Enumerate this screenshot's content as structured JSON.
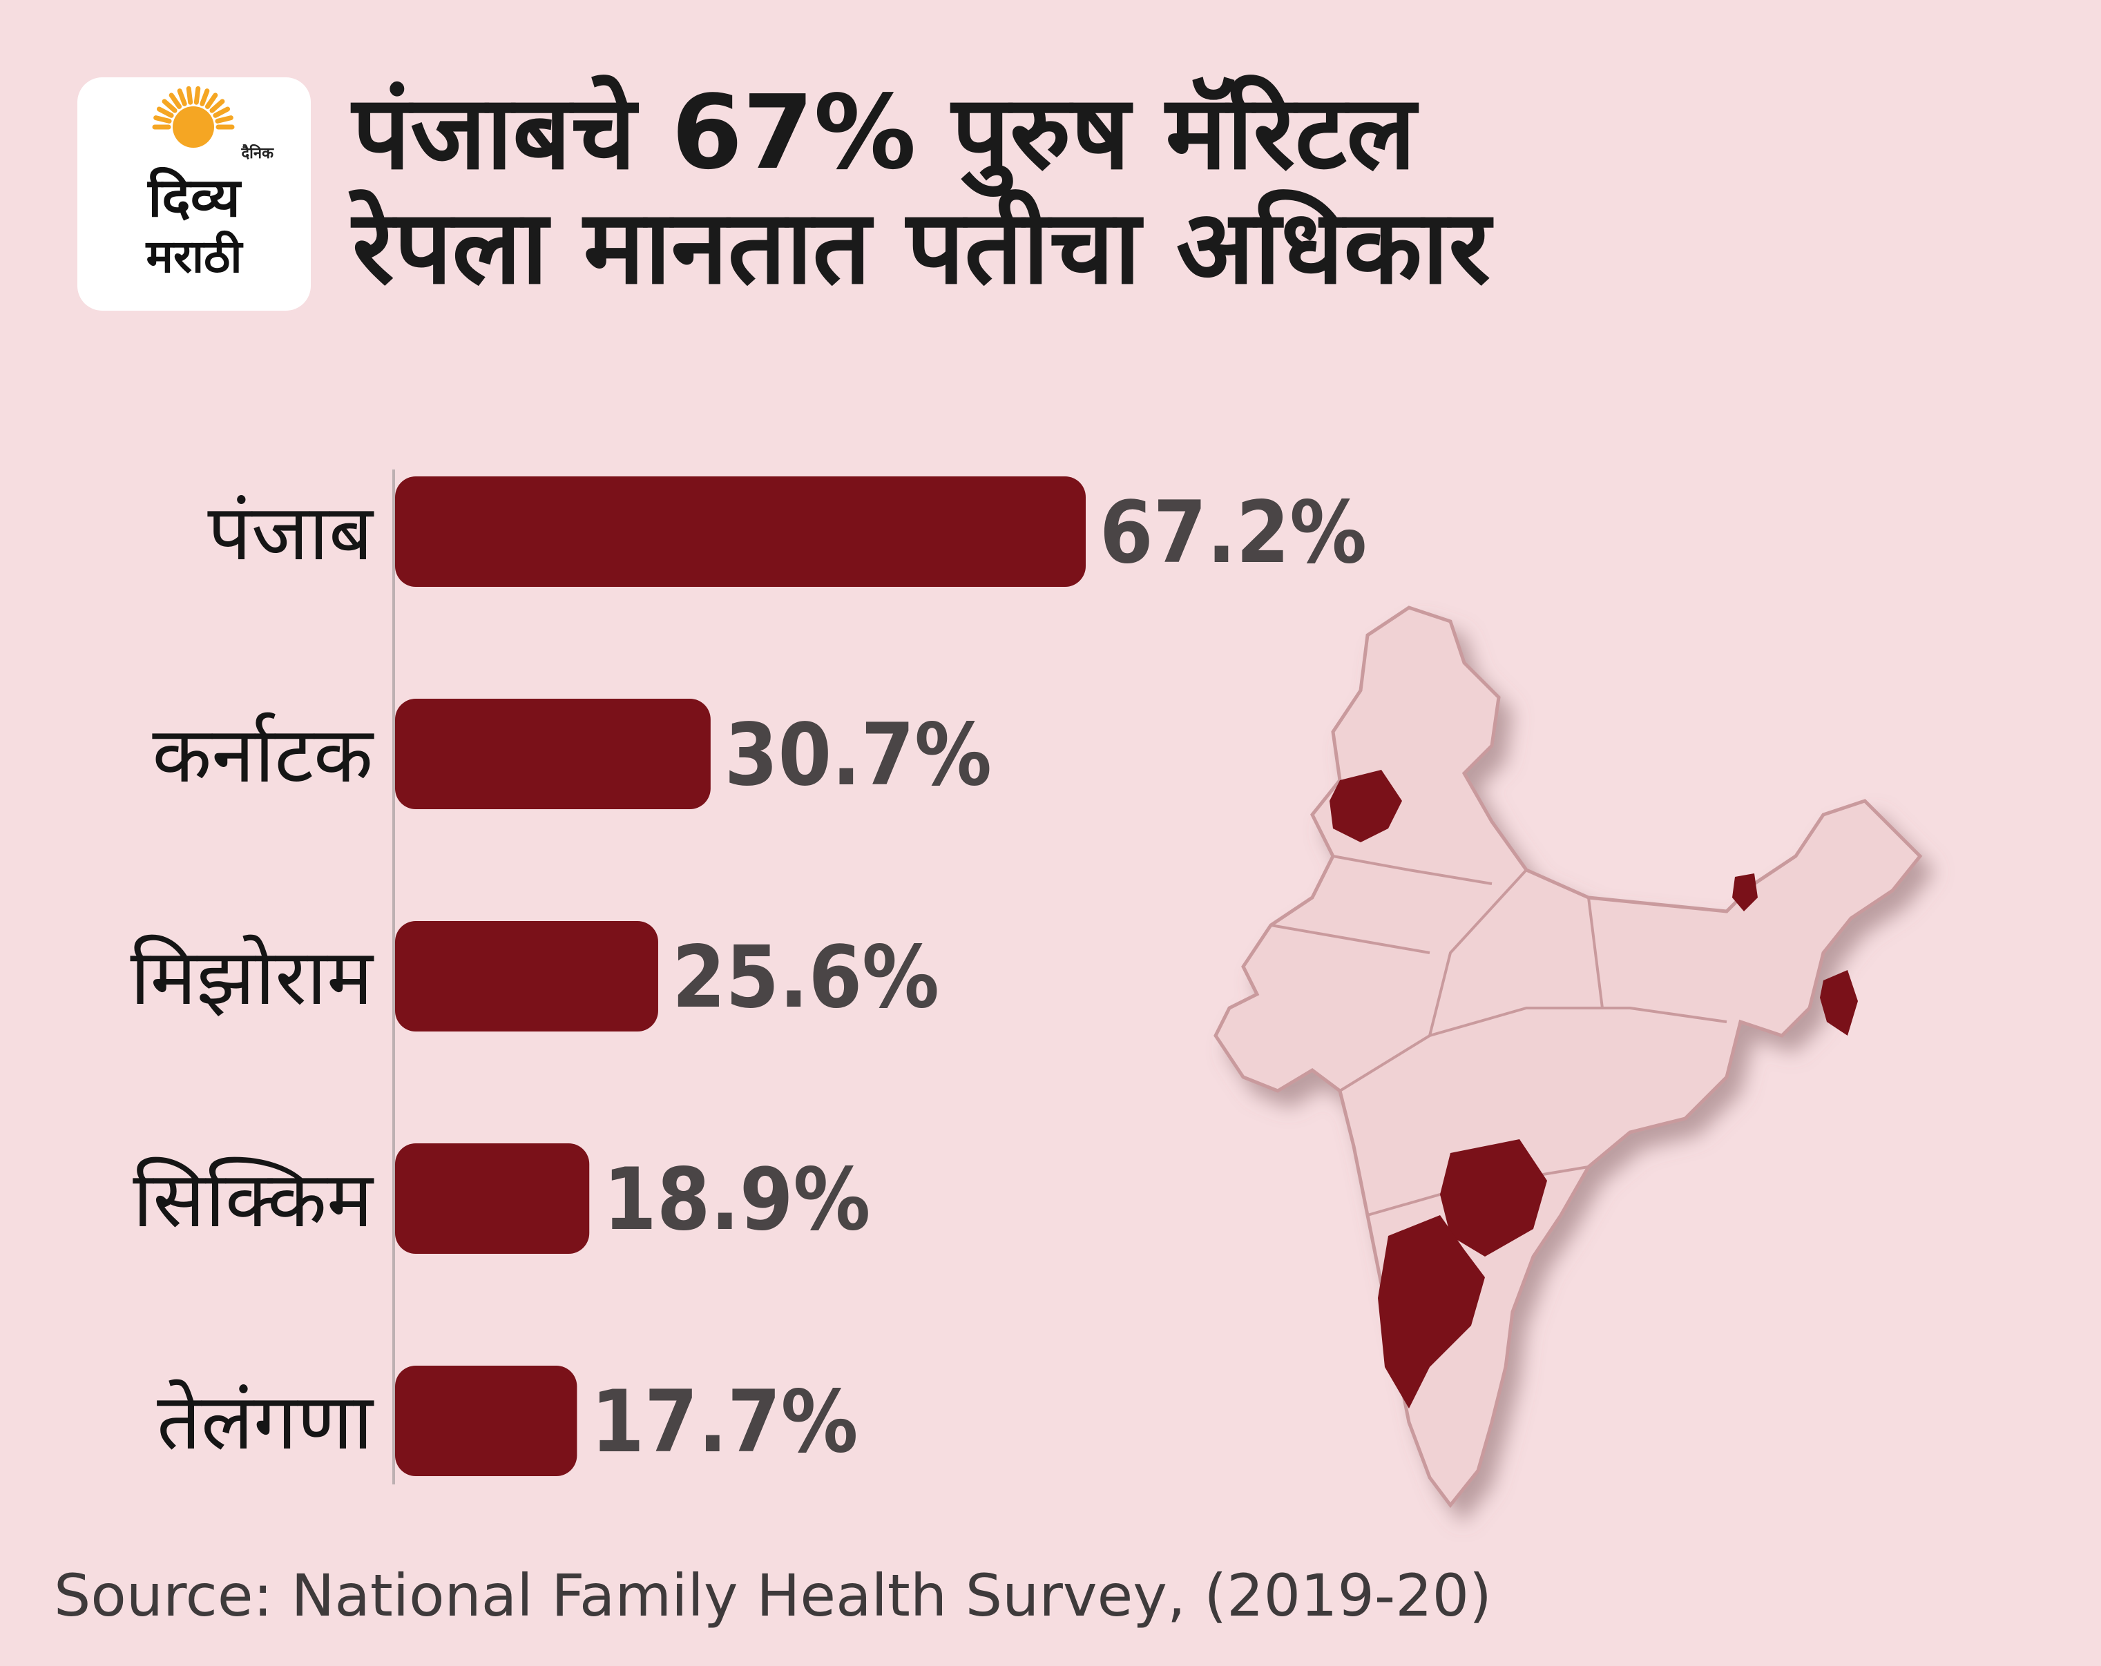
{
  "logo": {
    "small": "दैनिक",
    "line1": "दिव्य",
    "line2": "मराठी"
  },
  "title": {
    "line1": "पंजाबचे 67% पुरुष मॅरिटल",
    "line2": "रेपला मानतात पतीचा अधिकार"
  },
  "chart_data": {
    "type": "bar",
    "orientation": "horizontal",
    "title": "",
    "xlabel": "",
    "ylabel": "",
    "categories": [
      "पंजाब",
      "कर्नाटक",
      "मिझोराम",
      "सिक्किम",
      "तेलंगणा"
    ],
    "values": [
      67.2,
      30.7,
      25.6,
      18.9,
      17.7
    ],
    "value_labels": [
      "67.2%",
      "30.7%",
      "25.6%",
      "18.9%",
      "17.7%"
    ],
    "bar_color": "#7a1119",
    "xlim": [
      0,
      67.2
    ],
    "grid": false
  },
  "map": {
    "subject": "India",
    "base_color": "#f0d2d4",
    "border_color": "#c99a9d",
    "highlight_color": "#7a1119",
    "highlighted_regions": [
      "पंजाब",
      "कर्नाटक",
      "मिझोराम",
      "सिक्किम",
      "तेलंगणा"
    ]
  },
  "source": "Source: National Family Health Survey, (2019-20)"
}
